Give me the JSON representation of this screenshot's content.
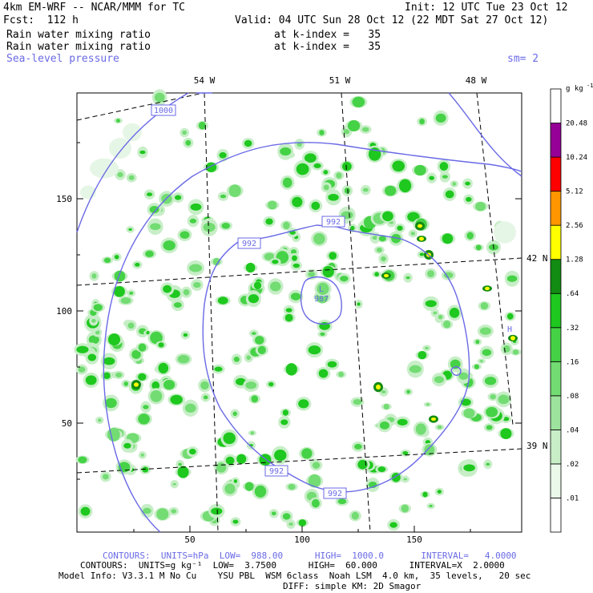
{
  "header": {
    "model": "4km EM-WRF -- NCAR/MMM for TC",
    "init": "Init: 12 UTC Tue 23 Oct 12",
    "fcst": "Fcst:  112 h",
    "valid": "Valid: 04 UTC Sun 28 Oct 12 (22 MDT Sat 27 Oct 12)",
    "field1": "Rain water mixing ratio",
    "field1_level": "at k-index =   35",
    "field2": "Rain water mixing ratio",
    "field2_level": "at k-index =   35",
    "field3": "Sea-level pressure",
    "smoothing": "sm= 2"
  },
  "map": {
    "lon_labels": [
      "54 W",
      "51 W",
      "48 W"
    ],
    "lat_labels": [
      "42 N",
      "39 N"
    ],
    "y_ticks": [
      "150",
      "100",
      "50"
    ],
    "x_ticks": [
      "50",
      "100",
      "150"
    ],
    "isobar_labels": [
      "1000",
      "992",
      "992",
      "992",
      "992"
    ],
    "low_center": {
      "symbol": "L",
      "value": "987"
    },
    "high_symbol": "H"
  },
  "colorbar": {
    "units": "g kg",
    "units_exp": "-1",
    "levels": [
      ".01",
      ".02",
      ".04",
      ".08",
      ".16",
      ".32",
      ".64",
      "1.28",
      "2.56",
      "5.12",
      "10.24",
      "20.48"
    ],
    "colors": [
      "#ffffff",
      "#eaf9ea",
      "#c8eec8",
      "#9de39d",
      "#73dc73",
      "#46d246",
      "#1ec81e",
      "#138c13",
      "#ffff00",
      "#ff9600",
      "#ff0000",
      "#960096",
      "#ffffff"
    ]
  },
  "footer": {
    "contours1": "CONTOURS:  UNITS=hPa  LOW=  988.00      HIGH=  1000.0       INTERVAL=   4.0000",
    "contours2": "CONTOURS:  UNITS=g kg⁻¹  LOW=  3.7500      HIGH=  60.000      INTERVAL=X  2.0000",
    "model_info": "Model Info: V3.3.1 M No Cu    YSU PBL  WSM 6class  Noah LSM  4.0 km,  35 levels,   20 sec",
    "diff": "DIFF: simple KM: 2D Smagor"
  }
}
